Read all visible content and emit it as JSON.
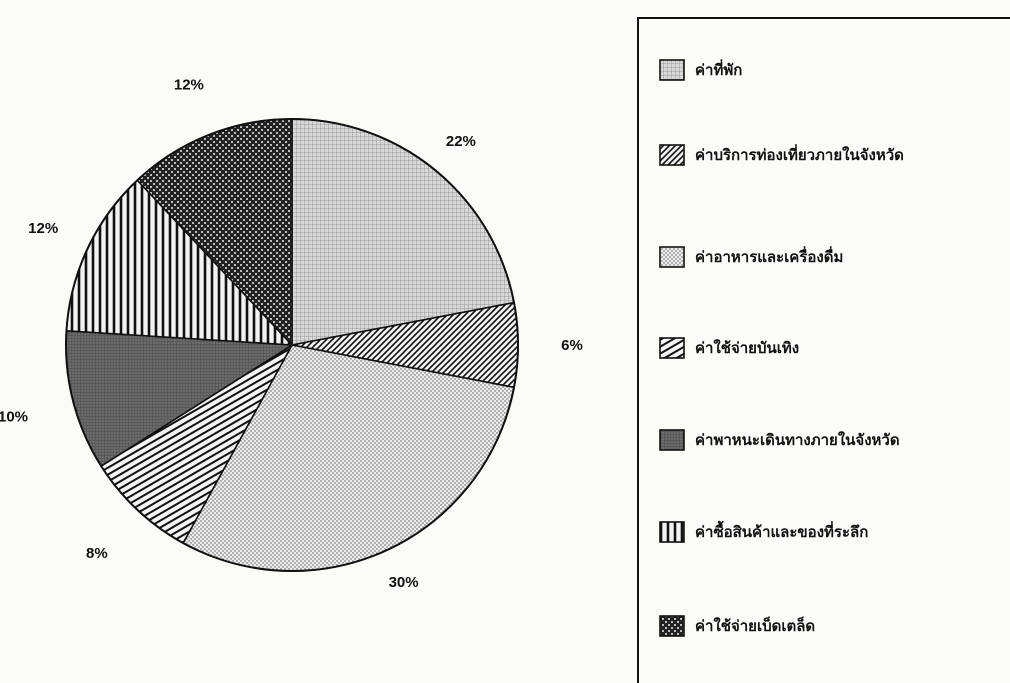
{
  "chart_data": {
    "type": "pie",
    "slices": [
      {
        "label": "ค่าที่พัก",
        "value": 22,
        "pct_label": "22%",
        "pattern": "grid-light"
      },
      {
        "label": "ค่าบริการท่องเที่ยวภายในจังหวัด",
        "value": 6,
        "pct_label": "6%",
        "pattern": "diag"
      },
      {
        "label": "ค่าอาหารและเครื่องดื่ม",
        "value": 30,
        "pct_label": "30%",
        "pattern": "dots"
      },
      {
        "label": "ค่าใช้จ่ายบันเทิง",
        "value": 8,
        "pct_label": "8%",
        "pattern": "hlines"
      },
      {
        "label": "ค่าพาหนะเดินทางภายในจังหวัด",
        "value": 10,
        "pct_label": "10%",
        "pattern": "dark-dots"
      },
      {
        "label": "ค่าซื้อสินค้าและของที่ระลึก",
        "value": 12,
        "pct_label": "12%",
        "pattern": "vlines"
      },
      {
        "label": "ค่าใช้จ่ายเบ็ดเตล็ด",
        "value": 12,
        "pct_label": "12%",
        "pattern": "checker"
      }
    ],
    "legend_placement": "right"
  }
}
